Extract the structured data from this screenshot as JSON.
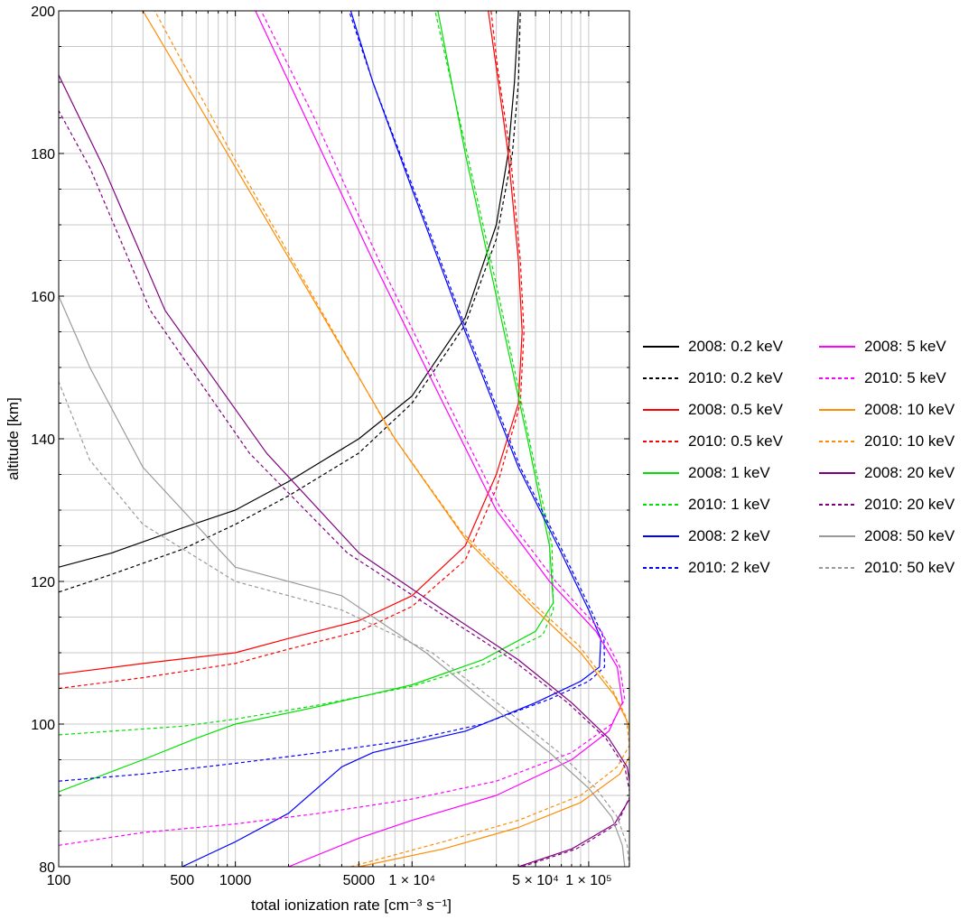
{
  "chart_data": {
    "type": "line",
    "xlabel": "total ionization rate [cm⁻³ s⁻¹]",
    "ylabel": "altitude [km]",
    "xscale": "log",
    "xlim": [
      100,
      170000
    ],
    "ylim": [
      80,
      200
    ],
    "grid": true,
    "legend_position": "right, two columns",
    "x_tick_labels": [
      {
        "value": 100,
        "label": "100"
      },
      {
        "value": 500,
        "label": "500"
      },
      {
        "value": 1000,
        "label": "1000"
      },
      {
        "value": 5000,
        "label": "5000"
      },
      {
        "value": 10000,
        "label": "1 × 10⁴"
      },
      {
        "value": 50000,
        "label": "5 × 10⁴"
      },
      {
        "value": 100000,
        "label": "1 × 10⁵"
      }
    ],
    "y_tick_labels": [
      {
        "value": 80,
        "label": "80"
      },
      {
        "value": 100,
        "label": "100"
      },
      {
        "value": 120,
        "label": "120"
      },
      {
        "value": 140,
        "label": "140"
      },
      {
        "value": 160,
        "label": "160"
      },
      {
        "value": 180,
        "label": "180"
      },
      {
        "value": 200,
        "label": "200"
      }
    ],
    "series": [
      {
        "name": "2008: 0.2 keV",
        "color": "#000000",
        "dash": false,
        "points": [
          [
            100,
            122
          ],
          [
            200,
            124
          ],
          [
            500,
            127.5
          ],
          [
            1000,
            130
          ],
          [
            2000,
            134
          ],
          [
            5000,
            140
          ],
          [
            10000,
            146
          ],
          [
            20000,
            157
          ],
          [
            30000,
            170
          ],
          [
            35000,
            180
          ],
          [
            38000,
            190
          ],
          [
            40000,
            200
          ]
        ]
      },
      {
        "name": "2010: 0.2 keV",
        "color": "#000000",
        "dash": true,
        "points": [
          [
            100,
            118.5
          ],
          [
            200,
            121
          ],
          [
            500,
            124.5
          ],
          [
            1000,
            128
          ],
          [
            2000,
            132
          ],
          [
            5000,
            138
          ],
          [
            10000,
            145
          ],
          [
            20000,
            156
          ],
          [
            30000,
            168
          ],
          [
            37000,
            180
          ],
          [
            40000,
            190
          ],
          [
            41000,
            200
          ]
        ]
      },
      {
        "name": "2008: 0.5 keV",
        "color": "#ff0000",
        "dash": false,
        "points": [
          [
            100,
            107
          ],
          [
            300,
            108.5
          ],
          [
            1000,
            110
          ],
          [
            2000,
            112
          ],
          [
            5000,
            114.5
          ],
          [
            10000,
            118
          ],
          [
            20000,
            125
          ],
          [
            30000,
            135
          ],
          [
            40000,
            145
          ],
          [
            42000,
            155
          ],
          [
            40000,
            165
          ],
          [
            35000,
            180
          ],
          [
            30000,
            192
          ],
          [
            27000,
            200
          ]
        ]
      },
      {
        "name": "2010: 0.5 keV",
        "color": "#ff0000",
        "dash": true,
        "points": [
          [
            100,
            105
          ],
          [
            300,
            106.5
          ],
          [
            1000,
            108.5
          ],
          [
            2000,
            110.5
          ],
          [
            5000,
            113
          ],
          [
            10000,
            116.5
          ],
          [
            20000,
            123
          ],
          [
            30000,
            133
          ],
          [
            41000,
            145
          ],
          [
            43000,
            155
          ],
          [
            41000,
            165
          ],
          [
            36000,
            180
          ],
          [
            30500,
            192
          ],
          [
            28000,
            200
          ]
        ]
      },
      {
        "name": "2008: 1 keV",
        "color": "#00e000",
        "dash": false,
        "points": [
          [
            100,
            90.5
          ],
          [
            300,
            95
          ],
          [
            600,
            98
          ],
          [
            1000,
            100
          ],
          [
            3000,
            102.5
          ],
          [
            10000,
            105.5
          ],
          [
            25000,
            109
          ],
          [
            50000,
            113
          ],
          [
            63000,
            117
          ],
          [
            60000,
            125
          ],
          [
            45000,
            140
          ],
          [
            30000,
            160
          ],
          [
            20000,
            180
          ],
          [
            14000,
            200
          ]
        ]
      },
      {
        "name": "2010: 1 keV",
        "color": "#00e000",
        "dash": true,
        "points": [
          [
            100,
            98.5
          ],
          [
            500,
            99.7
          ],
          [
            1000,
            100.7
          ],
          [
            3000,
            102.7
          ],
          [
            10000,
            105.3
          ],
          [
            25000,
            108.3
          ],
          [
            55000,
            112.5
          ],
          [
            63000,
            116
          ],
          [
            62000,
            125
          ],
          [
            46000,
            140
          ],
          [
            31000,
            160
          ],
          [
            20500,
            180
          ],
          [
            13500,
            200
          ]
        ]
      },
      {
        "name": "2008: 2 keV",
        "color": "#0000ff",
        "dash": false,
        "points": [
          [
            500,
            80
          ],
          [
            1000,
            83.5
          ],
          [
            2000,
            87.5
          ],
          [
            4000,
            94
          ],
          [
            6000,
            96
          ],
          [
            10000,
            97.3
          ],
          [
            20000,
            99
          ],
          [
            50000,
            103
          ],
          [
            90000,
            106
          ],
          [
            115000,
            108
          ],
          [
            117000,
            112
          ],
          [
            100000,
            116
          ],
          [
            70000,
            124
          ],
          [
            40000,
            136
          ],
          [
            20000,
            155
          ],
          [
            10000,
            175
          ],
          [
            6000,
            190
          ],
          [
            4500,
            200
          ]
        ]
      },
      {
        "name": "2010: 2 keV",
        "color": "#0000ff",
        "dash": true,
        "points": [
          [
            100,
            92
          ],
          [
            300,
            93
          ],
          [
            1000,
            94.5
          ],
          [
            3000,
            96
          ],
          [
            10000,
            97.8
          ],
          [
            25000,
            100
          ],
          [
            60000,
            103.5
          ],
          [
            100000,
            106
          ],
          [
            123000,
            108
          ],
          [
            122000,
            112
          ],
          [
            103000,
            116
          ],
          [
            72000,
            124
          ],
          [
            41000,
            136
          ],
          [
            20500,
            155
          ],
          [
            10200,
            175
          ],
          [
            6000,
            190
          ],
          [
            4400,
            200
          ]
        ]
      },
      {
        "name": "2008: 5 keV",
        "color": "#ff00ff",
        "dash": false,
        "points": [
          [
            2000,
            80
          ],
          [
            5000,
            84
          ],
          [
            10000,
            86.5
          ],
          [
            30000,
            90
          ],
          [
            80000,
            95
          ],
          [
            130000,
            99
          ],
          [
            155000,
            103
          ],
          [
            145000,
            108
          ],
          [
            110000,
            113
          ],
          [
            60000,
            120
          ],
          [
            30000,
            130
          ],
          [
            15000,
            145
          ],
          [
            6000,
            165
          ],
          [
            2500,
            185
          ],
          [
            1300,
            200
          ]
        ]
      },
      {
        "name": "2010: 5 keV",
        "color": "#ff00ff",
        "dash": true,
        "points": [
          [
            100,
            83
          ],
          [
            300,
            84.8
          ],
          [
            1000,
            86
          ],
          [
            3000,
            87.5
          ],
          [
            10000,
            89.5
          ],
          [
            30000,
            92
          ],
          [
            80000,
            96
          ],
          [
            135000,
            100
          ],
          [
            160000,
            103.5
          ],
          [
            150000,
            108
          ],
          [
            118000,
            113
          ],
          [
            65000,
            120
          ],
          [
            32000,
            130
          ],
          [
            16000,
            145
          ],
          [
            6500,
            165
          ],
          [
            2800,
            185
          ],
          [
            1400,
            200
          ]
        ]
      },
      {
        "name": "2008: 10 keV",
        "color": "#ff8c00",
        "dash": false,
        "points": [
          [
            5000,
            80
          ],
          [
            15000,
            82.5
          ],
          [
            40000,
            85.5
          ],
          [
            90000,
            89
          ],
          [
            150000,
            93
          ],
          [
            175000,
            96
          ],
          [
            168000,
            100
          ],
          [
            140000,
            104
          ],
          [
            90000,
            110
          ],
          [
            50000,
            116
          ],
          [
            20000,
            126
          ],
          [
            8000,
            140
          ],
          [
            3000,
            158
          ],
          [
            900,
            180
          ],
          [
            300,
            200
          ]
        ]
      },
      {
        "name": "2010: 10 keV",
        "color": "#ff8c00",
        "dash": true,
        "points": [
          [
            4500,
            80
          ],
          [
            15000,
            83.5
          ],
          [
            40000,
            86.5
          ],
          [
            90000,
            90
          ],
          [
            145000,
            94
          ],
          [
            170000,
            97
          ],
          [
            163000,
            101
          ],
          [
            135000,
            105
          ],
          [
            88000,
            111
          ],
          [
            48000,
            117
          ],
          [
            19000,
            127
          ],
          [
            7500,
            141
          ],
          [
            2900,
            159
          ],
          [
            950,
            180
          ],
          [
            350,
            200
          ]
        ]
      },
      {
        "name": "2008: 20 keV",
        "color": "#800080",
        "dash": false,
        "points": [
          [
            40000,
            80
          ],
          [
            80000,
            82.5
          ],
          [
            140000,
            86
          ],
          [
            175000,
            90
          ],
          [
            165000,
            94
          ],
          [
            130000,
            98
          ],
          [
            80000,
            103
          ],
          [
            40000,
            109
          ],
          [
            15000,
            116
          ],
          [
            5000,
            124
          ],
          [
            1500,
            138
          ],
          [
            400,
            158
          ],
          [
            180,
            178
          ],
          [
            100,
            191
          ]
        ]
      },
      {
        "name": "2010: 20 keV",
        "color": "#800080",
        "dash": true,
        "points": [
          [
            42000,
            80
          ],
          [
            85000,
            82.5
          ],
          [
            145000,
            86
          ],
          [
            172000,
            90
          ],
          [
            160000,
            94
          ],
          [
            125000,
            98
          ],
          [
            76000,
            103
          ],
          [
            37000,
            109
          ],
          [
            13500,
            116
          ],
          [
            4300,
            124
          ],
          [
            1200,
            138
          ],
          [
            330,
            158
          ],
          [
            150,
            178
          ],
          [
            100,
            186
          ]
        ]
      },
      {
        "name": "2008: 50 keV",
        "color": "#999999",
        "dash": false,
        "points": [
          [
            160000,
            80
          ],
          [
            155000,
            83
          ],
          [
            135000,
            87
          ],
          [
            100000,
            91
          ],
          [
            60000,
            96
          ],
          [
            30000,
            102
          ],
          [
            12000,
            110
          ],
          [
            4000,
            118
          ],
          [
            1000,
            122
          ],
          [
            300,
            136
          ],
          [
            150,
            150
          ],
          [
            100,
            160
          ]
        ]
      },
      {
        "name": "2010: 50 keV",
        "color": "#999999",
        "dash": true,
        "points": [
          [
            170000,
            80
          ],
          [
            165000,
            83
          ],
          [
            145000,
            87
          ],
          [
            110000,
            91
          ],
          [
            68000,
            96
          ],
          [
            34000,
            102
          ],
          [
            13000,
            110
          ],
          [
            4000,
            116
          ],
          [
            1000,
            120
          ],
          [
            300,
            128
          ],
          [
            150,
            137
          ],
          [
            100,
            148
          ]
        ]
      }
    ]
  }
}
